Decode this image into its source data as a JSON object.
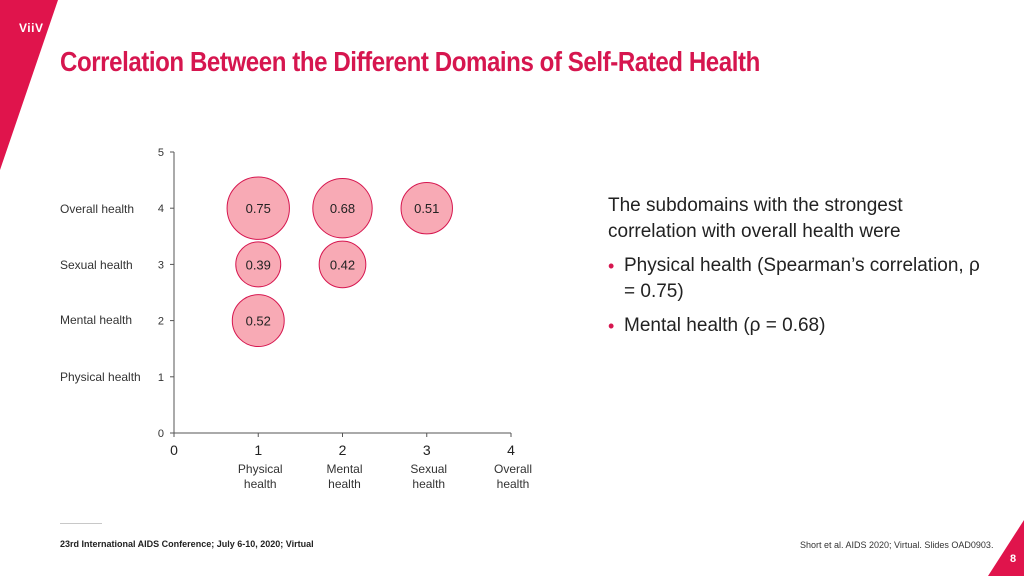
{
  "brand": {
    "logo_text": "ViiV",
    "accent": "#d6164f",
    "bubble_fill": "#f7a1ad",
    "bubble_stroke": "#d6164f"
  },
  "title": "Correlation Between the Different Domains of Self-Rated Health",
  "row_labels": [
    "Overall health",
    "Sexual health",
    "Mental health",
    "Physical health"
  ],
  "chart_data": {
    "type": "scatter",
    "subtype": "bubble",
    "title": "",
    "xlabel": "",
    "ylabel": "",
    "xlim": [
      0,
      4
    ],
    "ylim": [
      0,
      5
    ],
    "x_ticks": [
      "0",
      "1",
      "2",
      "3",
      "4"
    ],
    "y_ticks": [
      "0",
      "1",
      "2",
      "3",
      "4",
      "5"
    ],
    "x_category_labels": [
      {
        "x": 1,
        "line1": "Physical",
        "line2": "health"
      },
      {
        "x": 2,
        "line1": "Mental",
        "line2": "health"
      },
      {
        "x": 3,
        "line1": "Sexual",
        "line2": "health"
      },
      {
        "x": 4,
        "line1": "Overall",
        "line2": "health"
      }
    ],
    "points": [
      {
        "x": 1,
        "y": 4,
        "value": 0.75,
        "label": "0.75"
      },
      {
        "x": 2,
        "y": 4,
        "value": 0.68,
        "label": "0.68"
      },
      {
        "x": 3,
        "y": 4,
        "value": 0.51,
        "label": "0.51"
      },
      {
        "x": 1,
        "y": 3,
        "value": 0.39,
        "label": "0.39"
      },
      {
        "x": 2,
        "y": 3,
        "value": 0.42,
        "label": "0.42"
      },
      {
        "x": 1,
        "y": 2,
        "value": 0.52,
        "label": "0.52"
      }
    ],
    "grid": false,
    "legend": "none"
  },
  "panel": {
    "intro": "The subdomains with the strongest correlation with overall health were",
    "bullets": [
      "Physical health (Spearman’s correlation, ρ = 0.75)",
      "Mental health (ρ = 0.68)"
    ]
  },
  "footer": {
    "left": "23rd International AIDS Conference; July 6-10, 2020; Virtual",
    "right": "Short et al. AIDS 2020; Virtual. Slides OAD0903.",
    "page_number": "8"
  }
}
